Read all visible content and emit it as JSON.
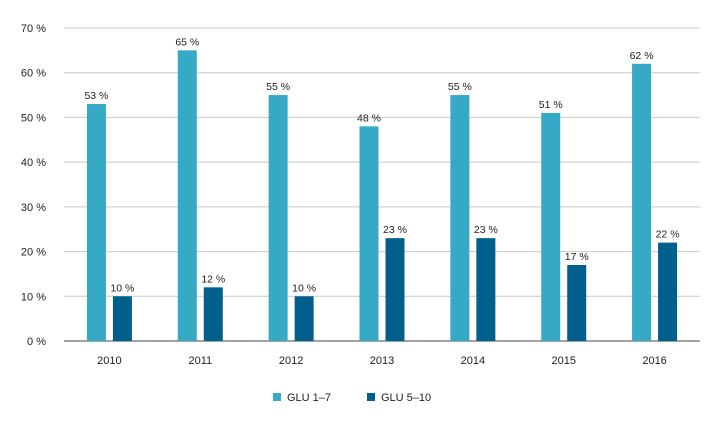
{
  "chart_data": {
    "type": "bar",
    "title": "",
    "xlabel": "",
    "ylabel": "",
    "categories": [
      "2010",
      "2011",
      "2012",
      "2013",
      "2014",
      "2015",
      "2016"
    ],
    "ylim": [
      0,
      70
    ],
    "yticks": [
      0,
      10,
      20,
      30,
      40,
      50,
      60,
      70
    ],
    "ytick_suffix": " %",
    "grid": true,
    "legend_position": "bottom-center",
    "series": [
      {
        "name": "GLU 1–7",
        "color": "#35a9c6",
        "values": [
          53,
          65,
          55,
          48,
          55,
          51,
          62
        ],
        "labels": [
          "53 %",
          "65 %",
          "55 %",
          "48 %",
          "55 %",
          "51 %",
          "62 %"
        ]
      },
      {
        "name": "GLU 5–10",
        "color": "#005f8c",
        "values": [
          10,
          12,
          10,
          23,
          23,
          17,
          22
        ],
        "labels": [
          "10 %",
          "12 %",
          "10 %",
          "23 %",
          "23 %",
          "17 %",
          "22 %"
        ]
      }
    ]
  }
}
